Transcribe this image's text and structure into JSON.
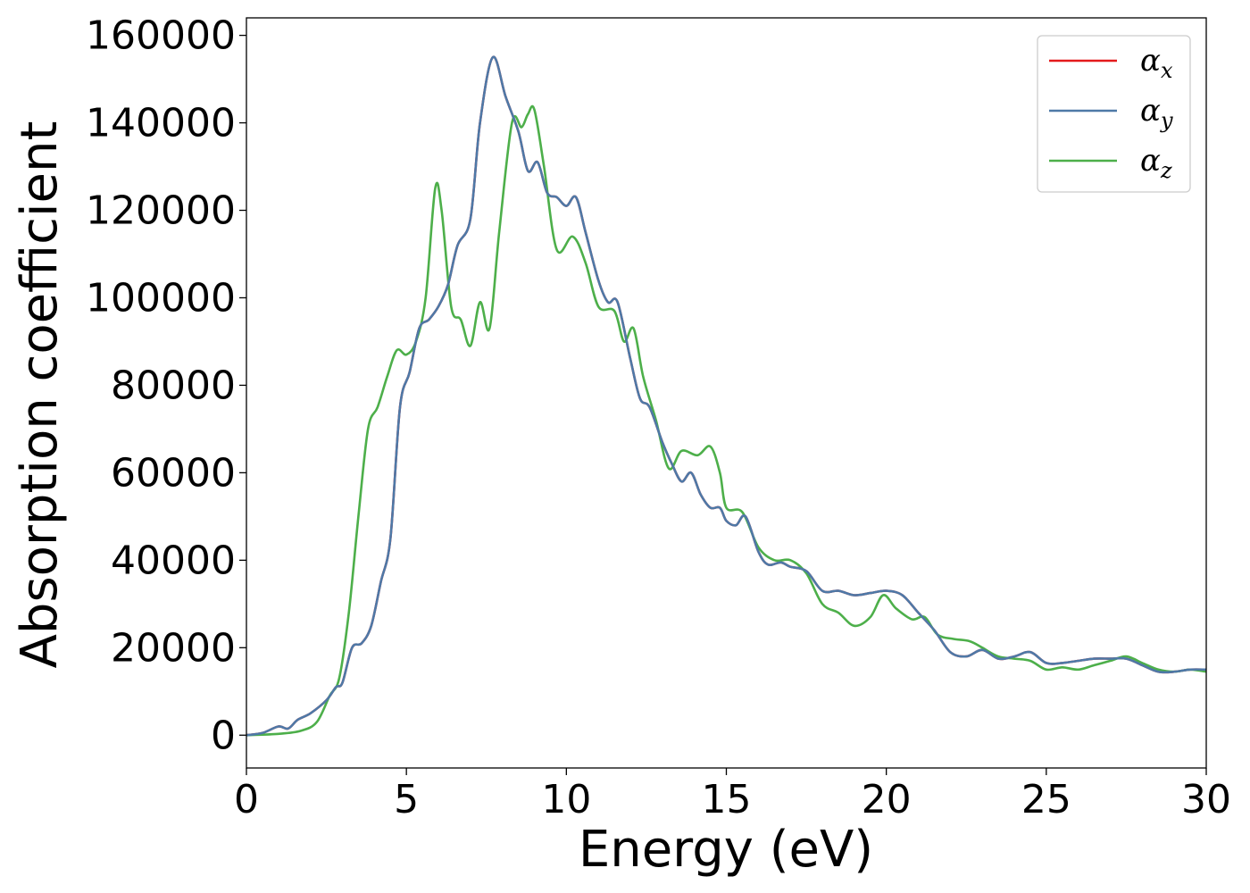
{
  "chart_data": {
    "type": "line",
    "title": "",
    "xlabel": "Energy (eV)",
    "ylabel": "Absorption coefficient",
    "xlim": [
      0,
      30
    ],
    "ylim": [
      -7500,
      164000
    ],
    "xticks": [
      0,
      5,
      10,
      15,
      20,
      25,
      30
    ],
    "yticks": [
      0,
      20000,
      40000,
      60000,
      80000,
      100000,
      120000,
      140000,
      160000
    ],
    "grid": false,
    "legend_position": "top-right",
    "series": [
      {
        "name": "α_x",
        "base": "α",
        "sub": "x",
        "color": "#e41a1c",
        "points": [
          [
            0,
            0
          ],
          [
            0.5,
            500
          ],
          [
            1,
            2000
          ],
          [
            1.3,
            1500
          ],
          [
            1.6,
            3500
          ],
          [
            2,
            5000
          ],
          [
            2.5,
            8000
          ],
          [
            2.8,
            11000
          ],
          [
            3,
            12000
          ],
          [
            3.3,
            20000
          ],
          [
            3.6,
            21000
          ],
          [
            3.9,
            25000
          ],
          [
            4.2,
            35000
          ],
          [
            4.5,
            45000
          ],
          [
            4.8,
            75000
          ],
          [
            5.1,
            83000
          ],
          [
            5.4,
            93000
          ],
          [
            5.7,
            95000
          ],
          [
            6,
            98000
          ],
          [
            6.3,
            103000
          ],
          [
            6.6,
            112000
          ],
          [
            7,
            118000
          ],
          [
            7.3,
            140000
          ],
          [
            7.7,
            155000
          ],
          [
            8.1,
            146000
          ],
          [
            8.5,
            138000
          ],
          [
            8.8,
            129000
          ],
          [
            9.1,
            131000
          ],
          [
            9.4,
            124000
          ],
          [
            9.7,
            123000
          ],
          [
            10,
            121000
          ],
          [
            10.3,
            123000
          ],
          [
            10.6,
            115000
          ],
          [
            11,
            104000
          ],
          [
            11.3,
            99000
          ],
          [
            11.6,
            99000
          ],
          [
            12,
            86000
          ],
          [
            12.3,
            77000
          ],
          [
            12.6,
            75000
          ],
          [
            13,
            67000
          ],
          [
            13.3,
            62000
          ],
          [
            13.6,
            58000
          ],
          [
            13.9,
            60000
          ],
          [
            14.2,
            55000
          ],
          [
            14.5,
            52000
          ],
          [
            14.8,
            52000
          ],
          [
            15,
            49000
          ],
          [
            15.3,
            48000
          ],
          [
            15.6,
            50000
          ],
          [
            16,
            42000
          ],
          [
            16.3,
            39000
          ],
          [
            16.7,
            39500
          ],
          [
            17,
            38500
          ],
          [
            17.5,
            37500
          ],
          [
            18,
            33000
          ],
          [
            18.5,
            33000
          ],
          [
            19,
            32000
          ],
          [
            19.5,
            32500
          ],
          [
            20,
            33000
          ],
          [
            20.5,
            32000
          ],
          [
            21,
            28000
          ],
          [
            21.5,
            24000
          ],
          [
            22,
            19000
          ],
          [
            22.5,
            18000
          ],
          [
            23,
            19500
          ],
          [
            23.5,
            17500
          ],
          [
            24,
            18000
          ],
          [
            24.5,
            19000
          ],
          [
            25,
            16500
          ],
          [
            25.5,
            16500
          ],
          [
            26,
            17000
          ],
          [
            26.5,
            17500
          ],
          [
            27,
            17500
          ],
          [
            27.5,
            17500
          ],
          [
            28,
            16000
          ],
          [
            28.5,
            14500
          ],
          [
            29,
            14500
          ],
          [
            29.5,
            15000
          ],
          [
            30,
            15000
          ]
        ]
      },
      {
        "name": "α_y",
        "base": "α",
        "sub": "y",
        "color": "#4e79a7",
        "points": [
          [
            0,
            0
          ],
          [
            0.5,
            500
          ],
          [
            1,
            2000
          ],
          [
            1.3,
            1500
          ],
          [
            1.6,
            3500
          ],
          [
            2,
            5000
          ],
          [
            2.5,
            8000
          ],
          [
            2.8,
            11000
          ],
          [
            3,
            12000
          ],
          [
            3.3,
            20000
          ],
          [
            3.6,
            21000
          ],
          [
            3.9,
            25000
          ],
          [
            4.2,
            35000
          ],
          [
            4.5,
            45000
          ],
          [
            4.8,
            75000
          ],
          [
            5.1,
            83000
          ],
          [
            5.4,
            93000
          ],
          [
            5.7,
            95000
          ],
          [
            6,
            98000
          ],
          [
            6.3,
            103000
          ],
          [
            6.6,
            112000
          ],
          [
            7,
            118000
          ],
          [
            7.3,
            140000
          ],
          [
            7.7,
            155000
          ],
          [
            8.1,
            146000
          ],
          [
            8.5,
            138000
          ],
          [
            8.8,
            129000
          ],
          [
            9.1,
            131000
          ],
          [
            9.4,
            124000
          ],
          [
            9.7,
            123000
          ],
          [
            10,
            121000
          ],
          [
            10.3,
            123000
          ],
          [
            10.6,
            115000
          ],
          [
            11,
            104000
          ],
          [
            11.3,
            99000
          ],
          [
            11.6,
            99000
          ],
          [
            12,
            86000
          ],
          [
            12.3,
            77000
          ],
          [
            12.6,
            75000
          ],
          [
            13,
            67000
          ],
          [
            13.3,
            62000
          ],
          [
            13.6,
            58000
          ],
          [
            13.9,
            60000
          ],
          [
            14.2,
            55000
          ],
          [
            14.5,
            52000
          ],
          [
            14.8,
            52000
          ],
          [
            15,
            49000
          ],
          [
            15.3,
            48000
          ],
          [
            15.6,
            50000
          ],
          [
            16,
            42000
          ],
          [
            16.3,
            39000
          ],
          [
            16.7,
            39500
          ],
          [
            17,
            38500
          ],
          [
            17.5,
            37500
          ],
          [
            18,
            33000
          ],
          [
            18.5,
            33000
          ],
          [
            19,
            32000
          ],
          [
            19.5,
            32500
          ],
          [
            20,
            33000
          ],
          [
            20.5,
            32000
          ],
          [
            21,
            28000
          ],
          [
            21.5,
            24000
          ],
          [
            22,
            19000
          ],
          [
            22.5,
            18000
          ],
          [
            23,
            19500
          ],
          [
            23.5,
            17500
          ],
          [
            24,
            18000
          ],
          [
            24.5,
            19000
          ],
          [
            25,
            16500
          ],
          [
            25.5,
            16500
          ],
          [
            26,
            17000
          ],
          [
            26.5,
            17500
          ],
          [
            27,
            17500
          ],
          [
            27.5,
            17500
          ],
          [
            28,
            16000
          ],
          [
            28.5,
            14500
          ],
          [
            29,
            14500
          ],
          [
            29.5,
            15000
          ],
          [
            30,
            15000
          ]
        ]
      },
      {
        "name": "α_z",
        "base": "α",
        "sub": "z",
        "color": "#4daf4a",
        "points": [
          [
            0,
            0
          ],
          [
            1,
            300
          ],
          [
            1.7,
            1000
          ],
          [
            2.2,
            3000
          ],
          [
            2.6,
            9000
          ],
          [
            2.9,
            13000
          ],
          [
            3.2,
            28000
          ],
          [
            3.5,
            50000
          ],
          [
            3.8,
            70000
          ],
          [
            4.1,
            75000
          ],
          [
            4.4,
            82000
          ],
          [
            4.7,
            88000
          ],
          [
            5,
            87000
          ],
          [
            5.3,
            90000
          ],
          [
            5.6,
            100000
          ],
          [
            5.9,
            125000
          ],
          [
            6.1,
            120000
          ],
          [
            6.4,
            98000
          ],
          [
            6.7,
            95000
          ],
          [
            7,
            89000
          ],
          [
            7.3,
            99000
          ],
          [
            7.6,
            93000
          ],
          [
            7.9,
            115000
          ],
          [
            8.3,
            140000
          ],
          [
            8.6,
            139000
          ],
          [
            8.8,
            142000
          ],
          [
            9,
            143000
          ],
          [
            9.3,
            130000
          ],
          [
            9.7,
            111000
          ],
          [
            10.2,
            114000
          ],
          [
            10.6,
            108000
          ],
          [
            11,
            98000
          ],
          [
            11.5,
            97000
          ],
          [
            11.8,
            90000
          ],
          [
            12.1,
            93000
          ],
          [
            12.4,
            82000
          ],
          [
            12.8,
            72000
          ],
          [
            13.2,
            61000
          ],
          [
            13.6,
            65000
          ],
          [
            14.1,
            64000
          ],
          [
            14.5,
            66000
          ],
          [
            14.8,
            60000
          ],
          [
            15,
            52000
          ],
          [
            15.5,
            51000
          ],
          [
            16,
            43000
          ],
          [
            16.5,
            40000
          ],
          [
            17,
            40000
          ],
          [
            17.5,
            37000
          ],
          [
            18,
            30000
          ],
          [
            18.5,
            28000
          ],
          [
            19,
            25000
          ],
          [
            19.5,
            27000
          ],
          [
            19.9,
            32000
          ],
          [
            20.3,
            29000
          ],
          [
            20.8,
            26500
          ],
          [
            21.2,
            27000
          ],
          [
            21.6,
            23000
          ],
          [
            22.1,
            22000
          ],
          [
            22.6,
            21500
          ],
          [
            23,
            20000
          ],
          [
            23.5,
            18000
          ],
          [
            24,
            17500
          ],
          [
            24.5,
            17000
          ],
          [
            25,
            15000
          ],
          [
            25.5,
            15500
          ],
          [
            26,
            15000
          ],
          [
            26.5,
            16000
          ],
          [
            27,
            17000
          ],
          [
            27.5,
            18000
          ],
          [
            28,
            16500
          ],
          [
            28.5,
            15000
          ],
          [
            29,
            14500
          ],
          [
            29.5,
            15000
          ],
          [
            30,
            14500
          ]
        ]
      }
    ]
  }
}
